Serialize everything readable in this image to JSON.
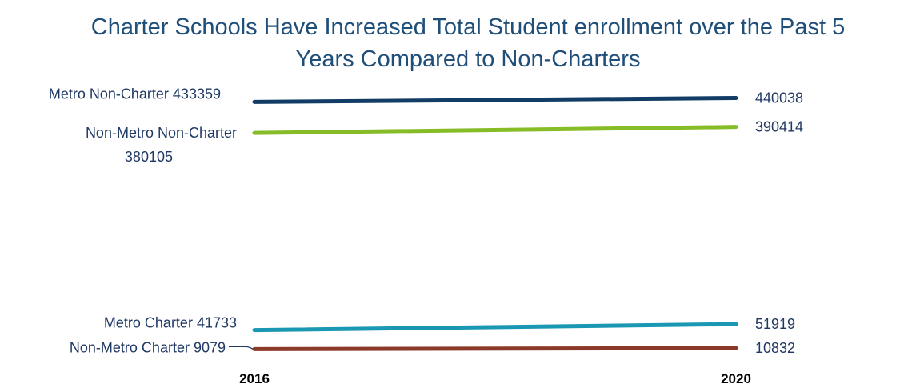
{
  "chart_data": {
    "type": "line",
    "title_lines": [
      "Charter Schools Have Increased Total Student enrollment over the Past 5",
      "Years Compared to Non-Charters"
    ],
    "x": [
      "2016",
      "2020"
    ],
    "xlabel": "",
    "ylabel": "",
    "grid": false,
    "legend": "none",
    "ylim": [
      0,
      460000
    ],
    "series": [
      {
        "name": "Metro Non-Charter",
        "values": [
          433359,
          440038
        ],
        "color": "#123b66",
        "start_label": [
          "Metro Non-Charter 433359"
        ],
        "end_label": "440038"
      },
      {
        "name": "Non-Metro Non-Charter",
        "values": [
          380105,
          390414
        ],
        "color": "#86bc25",
        "start_label": [
          "Non-Metro Non-Charter",
          "380105"
        ],
        "end_label": "390414"
      },
      {
        "name": "Metro Charter",
        "values": [
          41733,
          51919
        ],
        "color": "#1a97b2",
        "start_label": [
          "Metro Charter 41733"
        ],
        "end_label": "51919"
      },
      {
        "name": "Non-Metro Charter",
        "values": [
          9079,
          10832
        ],
        "color": "#8b3a2a",
        "start_label": [
          "Non-Metro Charter 9079"
        ],
        "end_label": "10832"
      }
    ]
  }
}
